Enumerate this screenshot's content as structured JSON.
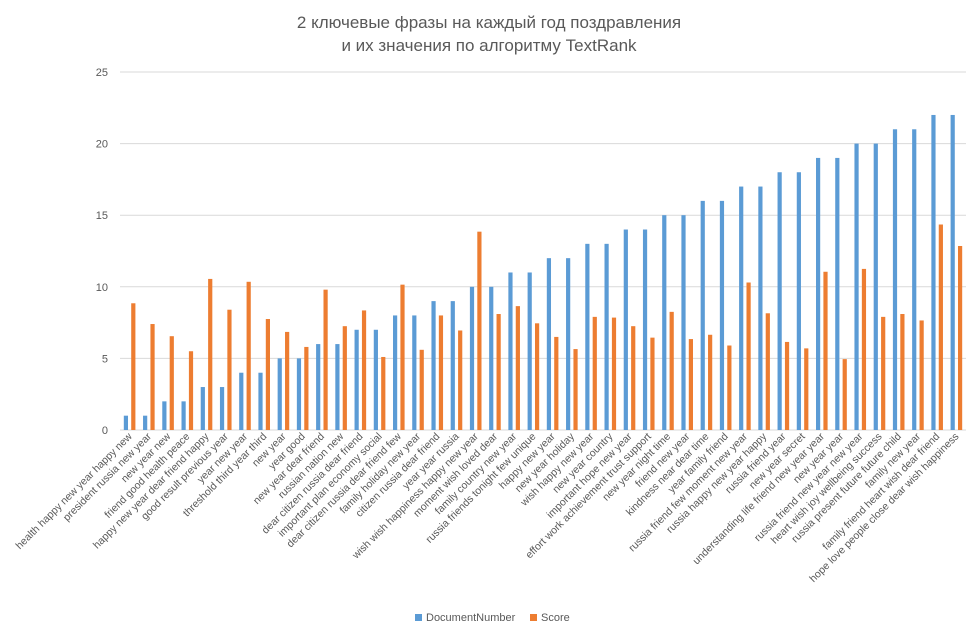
{
  "chart_data": {
    "type": "bar",
    "title_lines": [
      "2 ключевые фразы на каждый год поздравления",
      "и их значения по алгоритму TextRank"
    ],
    "xlabel": "",
    "ylabel": "",
    "ylim": [
      0,
      25
    ],
    "yticks": [
      0,
      5,
      10,
      15,
      20,
      25
    ],
    "grid": true,
    "legend_position": "bottom",
    "colors": {
      "DocumentNumber": "#5B9BD5",
      "Score": "#ED7D31"
    },
    "categories": [
      "health happy new year happy new",
      "president russia new year",
      "new year new",
      "friend good health peace",
      "happy new year dear friend happy",
      "good result previous year",
      "year new year",
      "threshold third year third",
      "new year",
      "year good",
      "new year dear friend",
      "russian nation new",
      "dear citizen russia dear friend",
      "important plan economy social",
      "dear citizen russia dear friend few",
      "family holiday new year",
      "citizen russia dear friend",
      "year year russia",
      "wish wish happiness happy new year",
      "moment wish loved dear",
      "family country new year",
      "russia friends tonight few unique",
      "happy new year",
      "new year holiday",
      "wish happy new year",
      "new year country",
      "important hope new year",
      "effort work achievement trust support",
      "new year night time",
      "friend new year",
      "kindness near dear time",
      "year family friend",
      "russia friend few moment new year",
      "russia happy new year happy",
      "russia friend year",
      "new year secret",
      "understanding life friend new year year",
      "new year year",
      "russia friend new year new year",
      "heart wish joy wellbeing success",
      "russia present future future child",
      "family new year",
      "family friend heart wish dear friend",
      "hope love people close dear wish happiness"
    ],
    "series": [
      {
        "name": "DocumentNumber",
        "values": [
          1,
          1,
          2,
          2,
          3,
          3,
          4,
          4,
          5,
          5,
          6,
          6,
          7,
          7,
          8,
          8,
          9,
          9,
          10,
          10,
          11,
          11,
          12,
          12,
          13,
          13,
          14,
          14,
          15,
          15,
          16,
          16,
          17,
          17,
          18,
          18,
          19,
          19,
          20,
          20,
          21,
          21,
          22,
          22
        ]
      },
      {
        "name": "Score",
        "values": [
          8.85,
          7.4,
          6.55,
          5.5,
          10.55,
          8.4,
          10.35,
          7.75,
          6.85,
          5.8,
          9.8,
          7.25,
          8.35,
          5.1,
          10.15,
          5.6,
          8.0,
          6.95,
          13.85,
          8.1,
          8.65,
          7.45,
          6.5,
          5.65,
          7.9,
          7.85,
          7.25,
          6.45,
          8.25,
          6.35,
          6.65,
          5.9,
          10.3,
          8.15,
          6.15,
          5.7,
          11.05,
          4.95,
          11.25,
          7.9,
          8.1,
          7.65,
          14.35,
          12.85
        ]
      }
    ]
  }
}
